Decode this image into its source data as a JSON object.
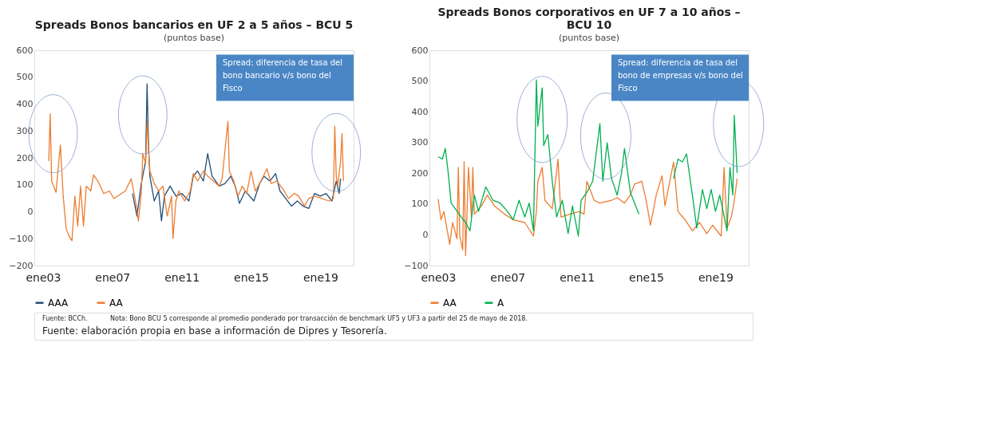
{
  "chart_data": [
    {
      "type": "line",
      "title": "Spreads Bonos bancarios en UF 2 a 5 años – BCU 5",
      "subtitle": "(puntos base)",
      "xlim": [
        "2002-07",
        "2020-12"
      ],
      "xticks": [
        {
          "value": "2003-01",
          "label": "ene03"
        },
        {
          "value": "2007-01",
          "label": "ene07"
        },
        {
          "value": "2011-01",
          "label": "ene11"
        },
        {
          "value": "2015-01",
          "label": "ene15"
        },
        {
          "value": "2019-01",
          "label": "ene19"
        }
      ],
      "ylim": [
        -200,
        600
      ],
      "yticks": [
        -200,
        -100,
        0,
        100,
        200,
        300,
        400,
        500,
        600
      ],
      "grid": false,
      "legend": "bottom",
      "annotations": [
        "Spread: diferencia de tasa del bono bancario v/s bono del Fisco",
        "Fuente: BCCh.",
        "Nota: Bono BCU 5 corresponde al promedio ponderado por transacción de benchmark UF5 y UF3 a partir del 25 de mayo de 2018.",
        "Fuente: elaboración propia en base a información de Dipres y Tesorería."
      ],
      "series": [
        {
          "name": "AAA",
          "color": "#1f4e79",
          "x": [
            "2008-03",
            "2008-06",
            "2008-09",
            "2008-12",
            "2009-01",
            "2009-02",
            "2009-03",
            "2009-06",
            "2009-09",
            "2009-11",
            "2010-01",
            "2010-05",
            "2010-09",
            "2011-01",
            "2011-06",
            "2011-09",
            "2011-12",
            "2012-04",
            "2012-07",
            "2012-10",
            "2013-03",
            "2013-07",
            "2013-11",
            "2014-02",
            "2014-05",
            "2014-09",
            "2014-12",
            "2015-03",
            "2015-07",
            "2015-10",
            "2016-02",
            "2016-06",
            "2016-09",
            "2017-01",
            "2017-05",
            "2017-09",
            "2018-01",
            "2018-05",
            "2018-09",
            "2019-01",
            "2019-05",
            "2019-09",
            "2019-12",
            "2020-02",
            "2020-03"
          ],
          "values": [
            68,
            -16,
            105,
            188,
            475,
            244,
            132,
            40,
            77,
            -34,
            58,
            95,
            58,
            68,
            40,
            132,
            151,
            114,
            216,
            132,
            95,
            105,
            132,
            95,
            31,
            77,
            58,
            40,
            105,
            132,
            114,
            142,
            77,
            49,
            21,
            40,
            21,
            12,
            68,
            58,
            68,
            40,
            114,
            68,
            123
          ]
        },
        {
          "name": "AA",
          "color": "#ed7d31",
          "x": [
            "2003-05",
            "2003-06",
            "2003-07",
            "2003-10",
            "2004-01",
            "2004-03",
            "2004-05",
            "2004-07",
            "2004-09",
            "2004-11",
            "2005-01",
            "2005-03",
            "2005-05",
            "2005-07",
            "2005-10",
            "2005-12",
            "2006-03",
            "2006-07",
            "2006-11",
            "2007-02",
            "2007-06",
            "2007-10",
            "2008-02",
            "2008-05",
            "2008-07",
            "2008-09",
            "2008-10",
            "2008-12",
            "2009-01-05",
            "2009-02",
            "2009-03",
            "2009-06",
            "2009-09",
            "2009-12",
            "2010-03",
            "2010-06",
            "2010-07",
            "2010-09",
            "2010-11",
            "2011-03",
            "2011-07",
            "2011-09",
            "2011-12",
            "2012-04",
            "2012-07",
            "2012-11",
            "2013-03",
            "2013-05",
            "2013-09",
            "2013-10",
            "2014-01",
            "2014-04",
            "2014-07",
            "2014-10",
            "2015-01",
            "2015-04",
            "2015-08",
            "2015-12",
            "2016-03",
            "2016-07",
            "2016-12",
            "2017-03",
            "2017-07",
            "2017-10",
            "2018-02",
            "2018-05",
            "2018-09",
            "2019-02",
            "2019-07",
            "2019-10",
            "2019-11",
            "2019-12",
            "2020-01",
            "2020-03",
            "2020-04",
            "2020-05"
          ],
          "values": [
            188,
            364,
            114,
            72,
            248,
            58,
            -62,
            -90,
            -108,
            58,
            -53,
            95,
            -53,
            95,
            77,
            137,
            114,
            68,
            77,
            49,
            63,
            77,
            123,
            40,
            -34,
            68,
            216,
            179,
            336,
            225,
            151,
            105,
            77,
            95,
            -16,
            58,
            -99,
            40,
            77,
            40,
            77,
            142,
            114,
            151,
            132,
            114,
            95,
            123,
            336,
            151,
            114,
            58,
            95,
            68,
            151,
            77,
            114,
            160,
            105,
            114,
            77,
            49,
            68,
            58,
            21,
            49,
            58,
            49,
            40,
            49,
            318,
            132,
            95,
            188,
            290,
            114
          ]
        }
      ]
    },
    {
      "type": "line",
      "title": "Spreads Bonos corporativos en UF 7 a 10 años – BCU 10",
      "subtitle": "(puntos base)",
      "xlim": [
        "2002-07",
        "2020-12"
      ],
      "xticks": [
        {
          "value": "2003-01",
          "label": "ene03"
        },
        {
          "value": "2007-01",
          "label": "ene07"
        },
        {
          "value": "2011-01",
          "label": "ene11"
        },
        {
          "value": "2015-01",
          "label": "ene15"
        },
        {
          "value": "2019-01",
          "label": "ene19"
        }
      ],
      "ylim": [
        -100,
        600
      ],
      "yticks": [
        -100,
        0,
        100,
        200,
        300,
        400,
        500,
        600
      ],
      "grid": false,
      "legend": "bottom",
      "annotations": [
        "Spread: diferencia de tasa del bono de empresas v/s bono del Fisco"
      ],
      "series": [
        {
          "name": "AA",
          "color": "#ed7d31",
          "x": [
            "2003-01",
            "2003-03",
            "2003-05",
            "2003-09",
            "2003-11",
            "2004-02",
            "2004-03",
            "2004-04",
            "2004-06",
            "2004-07",
            "2004-08",
            "2004-10",
            "2004-12",
            "2005-01",
            "2005-02",
            "2005-07",
            "2005-11",
            "2006-04",
            "2006-11",
            "2007-05",
            "2008-01",
            "2008-07",
            "2008-09",
            "2008-10",
            "2009-01",
            "2009-03",
            "2009-08",
            "2009-12",
            "2010-02",
            "2010-08",
            "2011-03",
            "2011-06",
            "2011-08",
            "2012-01",
            "2012-05",
            "2013-01",
            "2013-05",
            "2013-10",
            "2014-02",
            "2014-05",
            "2014-10",
            "2015-01",
            "2015-04",
            "2015-08",
            "2015-12",
            "2016-02",
            "2016-05",
            "2016-08",
            "2016-11",
            "2017-04",
            "2017-09",
            "2018-02",
            "2018-07",
            "2018-11",
            "2019-05",
            "2019-07",
            "2019-09",
            "2019-12",
            "2020-02",
            "2020-04"
          ],
          "values": [
            116,
            49,
            76,
            -31,
            40,
            -13,
            219,
            -4,
            -49,
            237,
            -67,
            219,
            58,
            219,
            67,
            94,
            129,
            94,
            67,
            49,
            40,
            -4,
            76,
            174,
            219,
            112,
            85,
            246,
            58,
            67,
            76,
            67,
            174,
            112,
            103,
            112,
            121,
            103,
            129,
            165,
            174,
            112,
            31,
            129,
            192,
            94,
            165,
            237,
            76,
            49,
            13,
            40,
            4,
            31,
            -4,
            219,
            22,
            58,
            112,
            183
          ]
        },
        {
          "name": "A",
          "color": "#00b050",
          "x": [
            "2003-01",
            "2003-04",
            "2003-06",
            "2003-08",
            "2003-10",
            "2004-05",
            "2004-08",
            "2004-11",
            "2005-02",
            "2005-05",
            "2005-10",
            "2006-03",
            "2006-08",
            "2007-01",
            "2007-05",
            "2007-09",
            "2008-01",
            "2008-04",
            "2008-07",
            "2008-09",
            "2008-10",
            "2009-01",
            "2009-02",
            "2009-05",
            "2009-08",
            "2009-11",
            "2010-03",
            "2010-07",
            "2010-10",
            "2011-02",
            "2011-04",
            "2011-08",
            "2011-12",
            "2012-05",
            "2012-07",
            "2012-10",
            "2013-01",
            "2013-05",
            "2013-08",
            "2013-10",
            "2014-02",
            "2014-08",
            "2015-06",
            "2016-08",
            "2016-11",
            "2017-02",
            "2017-05",
            "2017-09",
            "2017-12",
            "2018-04",
            "2018-07",
            "2018-10",
            "2019-01",
            "2019-04",
            "2019-09",
            "2019-11",
            "2020-01",
            "2020-02",
            "2020-04"
          ],
          "values": [
            254,
            246,
            281,
            201,
            103,
            58,
            40,
            13,
            129,
            76,
            156,
            112,
            103,
            76,
            49,
            112,
            58,
            103,
            13,
            504,
            353,
            478,
            290,
            326,
            174,
            58,
            112,
            4,
            94,
            -4,
            112,
            138,
            174,
            362,
            174,
            299,
            183,
            129,
            201,
            281,
            138,
            67,
            null,
            183,
            246,
            237,
            263,
            129,
            22,
            147,
            85,
            147,
            76,
            129,
            13,
            219,
            129,
            388,
            201
          ]
        }
      ]
    }
  ]
}
